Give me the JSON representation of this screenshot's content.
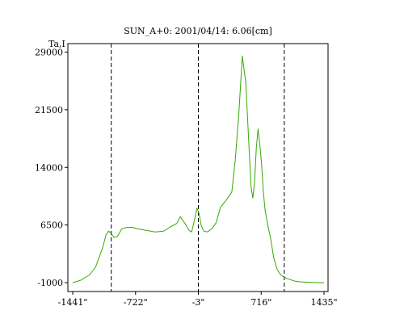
{
  "chart_data": {
    "type": "line",
    "title": "SUN_A+0: 2001/04/14: 6.06[cm]",
    "ylabel": "Ta,I",
    "xlabel": "",
    "xlim": [
      -1441,
      1435
    ],
    "ylim": [
      -1000,
      30000
    ],
    "x_ticks": [
      -1441,
      -722,
      -3,
      716,
      1435
    ],
    "x_tick_labels": [
      "-1441\"",
      "-722\"",
      "-3\"",
      "716\"",
      "1435\""
    ],
    "y_ticks": [
      -1000,
      6500,
      14000,
      21500,
      29000
    ],
    "y_tick_labels": [
      "-1000",
      "6500",
      "14000",
      "21500",
      "29000"
    ],
    "grid": false,
    "vertical_markers": [
      -1000,
      -3,
      980
    ],
    "series": [
      {
        "color": "#33aa00",
        "x": [
          -1441,
          -1350,
          -1250,
          -1180,
          -1100,
          -1060,
          -1030,
          -1000,
          -970,
          -930,
          -880,
          -820,
          -760,
          -700,
          -600,
          -500,
          -400,
          -330,
          -250,
          -210,
          -150,
          -110,
          -80,
          -50,
          -20,
          5,
          30,
          60,
          100,
          150,
          200,
          250,
          320,
          380,
          420,
          460,
          500,
          540,
          580,
          600,
          620,
          640,
          660,
          680,
          700,
          720,
          740,
          760,
          800,
          820,
          840,
          860,
          900,
          940,
          980,
          1020,
          1060,
          1100,
          1160,
          1250,
          1350,
          1435
        ],
        "y": [
          -1000,
          -700,
          0,
          1000,
          3500,
          5200,
          5700,
          5400,
          4900,
          5000,
          6000,
          6200,
          6200,
          6000,
          5800,
          5600,
          5700,
          6200,
          6700,
          7600,
          6600,
          5800,
          5600,
          7000,
          8700,
          8000,
          6400,
          5700,
          5600,
          6000,
          6800,
          8800,
          9800,
          10800,
          15000,
          21000,
          28500,
          25000,
          16000,
          11500,
          10000,
          12000,
          16500,
          19000,
          17000,
          14500,
          11000,
          8500,
          6000,
          5000,
          3600,
          2200,
          700,
          0,
          -300,
          -500,
          -650,
          -800,
          -900,
          -950,
          -1000,
          -1000
        ]
      }
    ]
  }
}
